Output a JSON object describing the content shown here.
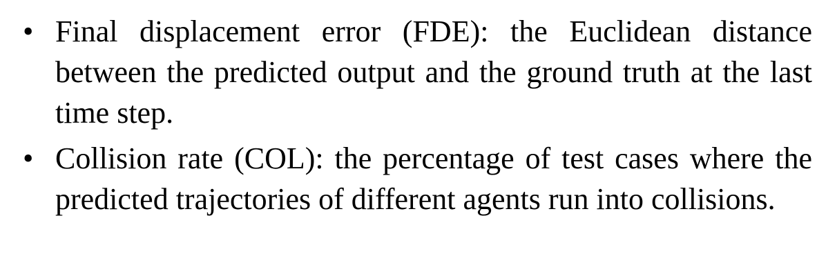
{
  "bullet_list": {
    "items": [
      {
        "marker": "•",
        "text": "Final displacement error (FDE): the Euclidean dis­tance between the predicted output and the ground truth at the last time step."
      },
      {
        "marker": "•",
        "text": "Collision rate (COL): the percentage of test cases where the predicted trajectories of different agents run into collisions."
      }
    ]
  }
}
